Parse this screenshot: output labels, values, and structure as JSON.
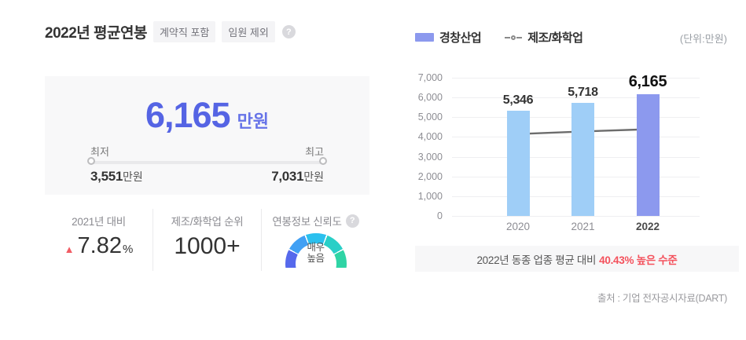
{
  "header": {
    "title": "2022년 평균연봉",
    "badges": [
      "계약직 포함",
      "임원 제외"
    ],
    "help": "?"
  },
  "summary": {
    "amount": "6,165",
    "unit": "만원",
    "range": {
      "min_label": "최저",
      "max_label": "최고",
      "min_value": "3,551",
      "min_unit": "만원",
      "max_value": "7,031",
      "max_unit": "만원"
    }
  },
  "stats": {
    "yoy_label": "2021년 대비",
    "yoy_direction": "▲",
    "yoy_value": "7.82",
    "yoy_unit": "%",
    "rank_label": "제조/화학업 순위",
    "rank_value": "1000+",
    "trust_label": "연봉정보 신뢰도",
    "trust_help": "?",
    "trust_level_line1": "매우",
    "trust_level_line2": "높음"
  },
  "chart": {
    "legend_bar": "경창산업",
    "legend_line": "제조/화학업",
    "unit_label": "(단위:만원)"
  },
  "chart_data": {
    "type": "bar",
    "categories": [
      "2020",
      "2021",
      "2022"
    ],
    "series": [
      {
        "name": "경창산업",
        "type": "bar",
        "values": [
          5346,
          5718,
          6165
        ]
      },
      {
        "name": "제조/화학업",
        "type": "line",
        "values": [
          4150,
          4280,
          4390
        ]
      }
    ],
    "bar_labels": [
      "5,346",
      "5,718",
      "6,165"
    ],
    "ytick_labels": [
      "7,000",
      "6,000",
      "5,000",
      "4,000",
      "3,000",
      "2,000",
      "1,000",
      "0"
    ],
    "ylim": [
      0,
      7000
    ],
    "unit": "만원",
    "highlight_category": "2022",
    "legend_position": "top-left",
    "grid": "horizontal"
  },
  "banner": {
    "prefix": "2022년 동종 업종 평균 대비 ",
    "highlight": "40.43% 높은 수준"
  },
  "source": "출처 : 기업 전자공시자료(DART)",
  "colors": {
    "accent_blue": "#5564E4",
    "accent_blue_light": "#6673E8",
    "bar_blue": "#9FCEF7",
    "bar_highlight": "#8C99EE",
    "line_gray": "#6C6C6C",
    "marker_stroke": "#949494",
    "up_red": "#F15C64",
    "banner_red": "#F4515C",
    "gauge_segments": [
      "#5669EC",
      "#41A0F4",
      "#2BC0EE",
      "#29CFC7",
      "#2FD4A5"
    ]
  }
}
